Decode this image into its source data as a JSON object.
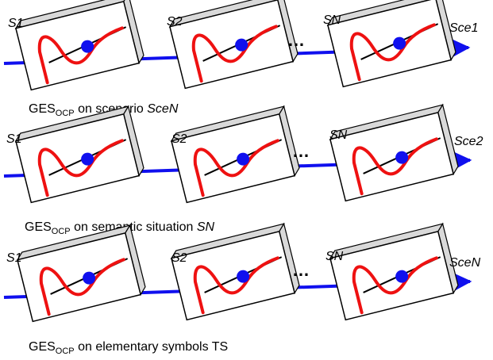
{
  "rows": [
    {
      "labels": [
        "S1",
        "S2",
        "SN"
      ],
      "ellipsis": "…",
      "end_label": "Sce1",
      "caption": {
        "prefix": "GES",
        "sub": "OCP",
        "middle": " on scenario ",
        "emph": "SceN",
        "suffix": ""
      }
    },
    {
      "labels": [
        "S1",
        "S2",
        "SN"
      ],
      "ellipsis": "…",
      "end_label": "Sce2",
      "caption": {
        "prefix": "GES",
        "sub": "OCP",
        "middle": " on semantic situation ",
        "emph": "SN",
        "suffix": ""
      }
    },
    {
      "labels": [
        "S1",
        "S2",
        "SN"
      ],
      "ellipsis": "…",
      "end_label": "SceN",
      "caption": {
        "prefix": "GES",
        "sub": "OCP",
        "middle": " on elementary symbols TS",
        "emph": "",
        "suffix": ""
      }
    }
  ],
  "colors": {
    "chain": "#1010ee",
    "curve": "#ee1111",
    "box_face": "#ffffff",
    "box_edge": "#000000",
    "box_side": "#d9d9d9"
  }
}
